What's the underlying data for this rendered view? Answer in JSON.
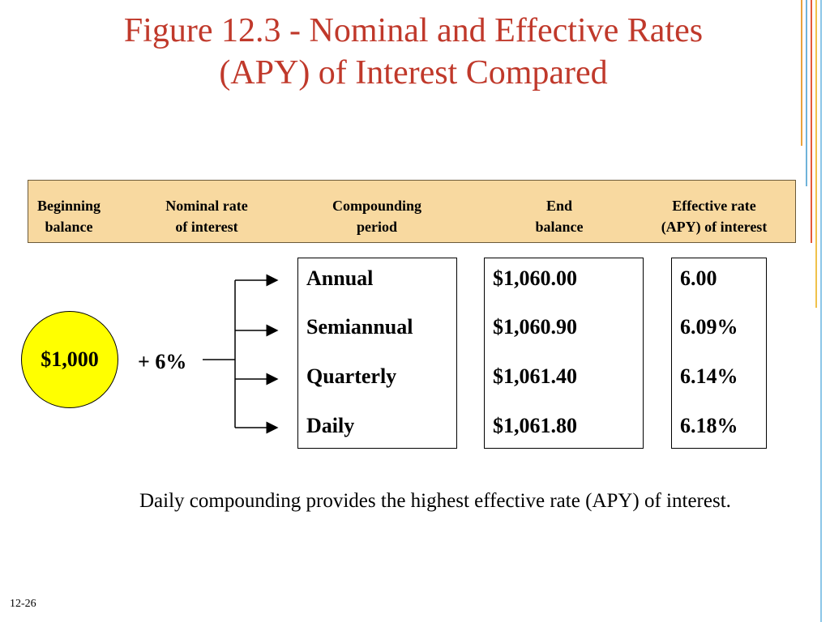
{
  "title": {
    "line1": "Figure 12.3 - Nominal and Effective Rates",
    "line2": "(APY) of Interest Compared"
  },
  "headers": {
    "beginning": [
      "Beginning",
      "balance"
    ],
    "nominal": [
      "Nominal rate",
      "of interest"
    ],
    "compounding": [
      "Compounding",
      "period"
    ],
    "end": [
      "End",
      "balance"
    ],
    "effective": [
      "Effective rate",
      "(APY) of interest"
    ]
  },
  "beginning_balance": "$1,000",
  "nominal_rate": "+ 6%",
  "periods": [
    "Annual",
    "Semiannual",
    "Quarterly",
    "Daily"
  ],
  "end_balances": [
    "$1,060.00",
    "$1,060.90",
    "$1,061.40",
    "$1,061.80"
  ],
  "effective_rates": [
    "6.00",
    "6.09%",
    "6.14%",
    "6.18%"
  ],
  "note": "Daily compounding provides the highest effective rate (APY) of interest.",
  "slide_number": "12-26",
  "colors": {
    "title": "#c0392b",
    "header_bg": "#f8d9a0",
    "circle": "#ffff00"
  }
}
